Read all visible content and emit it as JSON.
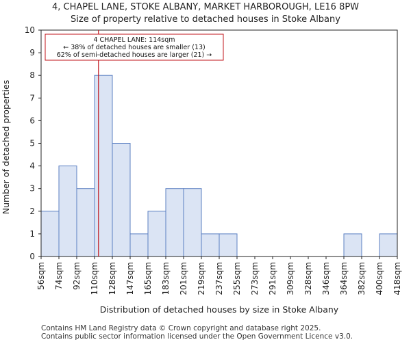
{
  "title_line1": "4, CHAPEL LANE, STOKE ALBANY, MARKET HARBOROUGH, LE16 8PW",
  "title_line2": "Size of property relative to detached houses in Stoke Albany",
  "footer_line1": "Contains HM Land Registry data © Crown copyright and database right 2025.",
  "footer_line2": "Contains public sector information licensed under the Open Government Licence v3.0.",
  "chart_data": {
    "type": "bar",
    "xlabel": "Distribution of detached houses by size in Stoke Albany",
    "ylabel": "Number of detached properties",
    "ylim": [
      0,
      10
    ],
    "yticks": [
      0,
      1,
      2,
      3,
      4,
      5,
      6,
      7,
      8,
      9,
      10
    ],
    "bin_edges": [
      "56sqm",
      "74sqm",
      "92sqm",
      "110sqm",
      "128sqm",
      "147sqm",
      "165sqm",
      "183sqm",
      "201sqm",
      "219sqm",
      "237sqm",
      "255sqm",
      "273sqm",
      "291sqm",
      "309sqm",
      "328sqm",
      "346sqm",
      "364sqm",
      "382sqm",
      "400sqm",
      "418sqm"
    ],
    "values": [
      2,
      4,
      3,
      8,
      5,
      1,
      2,
      3,
      3,
      1,
      1,
      0,
      0,
      0,
      0,
      0,
      0,
      1,
      0,
      1
    ],
    "bar_fill": "#dbe4f4",
    "bar_stroke": "#5b7fc2",
    "marker": {
      "value_sqm": 114,
      "color": "#c0141b",
      "lines": [
        "4 CHAPEL LANE: 114sqm",
        "← 38% of detached houses are smaller (13)",
        "62% of semi-detached houses are larger (21) →"
      ]
    }
  }
}
